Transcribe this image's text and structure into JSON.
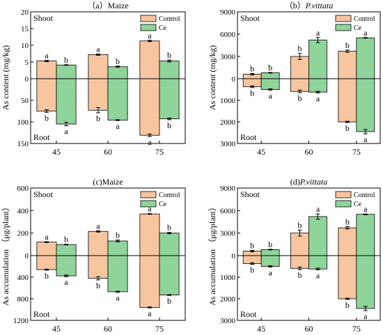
{
  "colors": {
    "control": "#f7c6a0",
    "ce": "#8fd49a",
    "axis": "#000000"
  },
  "chart_data": [
    {
      "id": "a",
      "type": "bar",
      "title_prefix": "（a）",
      "title_main": "Maize",
      "title_italic": false,
      "ylabel": "As content (mg/kg)",
      "xlabel": "",
      "categories": [
        "45",
        "60",
        "75"
      ],
      "legend": [
        "Control",
        "Ce"
      ],
      "legend_position": "top-right",
      "zone_labels": {
        "top": "Shoot",
        "bottom": "Root"
      },
      "top_ticks": [
        0,
        5,
        10,
        15,
        20
      ],
      "bottom_ticks": [
        0,
        50,
        100,
        150
      ],
      "top_max": 20,
      "bottom_max": 150,
      "series": [
        {
          "name": "Control",
          "shoot": [
            5.3,
            7.2,
            11.3
          ],
          "shoot_err": [
            0.2,
            0.2,
            0.2
          ],
          "shoot_letters": [
            "a",
            "a",
            "a"
          ],
          "root": [
            75,
            73,
            131
          ],
          "root_err": [
            3,
            6,
            3
          ],
          "root_letters": [
            "b",
            "b",
            "a"
          ]
        },
        {
          "name": "Ce",
          "shoot": [
            4.1,
            3.6,
            5.3
          ],
          "shoot_err": [
            0.1,
            0.2,
            0.3
          ],
          "shoot_letters": [
            "b",
            "b",
            "b"
          ],
          "root": [
            105,
            96,
            93
          ],
          "root_err": [
            4,
            1,
            2
          ],
          "root_letters": [
            "a",
            "a",
            "b"
          ]
        }
      ]
    },
    {
      "id": "b",
      "type": "bar",
      "title_prefix": "（b）",
      "title_main": "P.vittata",
      "title_italic": true,
      "ylabel": "As content (mg/kg)",
      "xlabel": "",
      "categories": [
        "45",
        "60",
        "75"
      ],
      "legend": [
        "Control",
        "Ce"
      ],
      "legend_position": "top-right",
      "zone_labels": {
        "top": "Shoot",
        "bottom": "Root"
      },
      "top_ticks": [
        0,
        3000,
        6000,
        9000
      ],
      "bottom_ticks": [
        0,
        1000,
        2000,
        3000
      ],
      "top_max": 9000,
      "bottom_max": 3000,
      "series": [
        {
          "name": "Control",
          "shoot": [
            600,
            3000,
            3700
          ],
          "shoot_err": [
            100,
            400,
            150
          ],
          "shoot_letters": [
            "b",
            "b",
            "b"
          ],
          "root": [
            370,
            590,
            2000
          ],
          "root_err": [
            40,
            60,
            30
          ],
          "root_letters": [
            "b",
            "b",
            "b"
          ]
        },
        {
          "name": "Ce",
          "shoot": [
            800,
            5200,
            5500
          ],
          "shoot_err": [
            50,
            350,
            50
          ],
          "shoot_letters": [
            "b",
            "a",
            "a"
          ],
          "root": [
            500,
            620,
            2450
          ],
          "root_err": [
            30,
            40,
            100
          ],
          "root_letters": [
            "a",
            "a",
            "a"
          ]
        }
      ]
    },
    {
      "id": "c",
      "type": "bar",
      "title_prefix": "(c)",
      "title_main": "Maize",
      "title_italic": false,
      "ylabel": "As accumulation （μg/plant）",
      "xlabel": "",
      "categories": [
        "45",
        "60",
        "75"
      ],
      "legend": [
        "Control",
        "Ce"
      ],
      "legend_position": "top-right",
      "zone_labels": {
        "top": "Shoot",
        "bottom": "Root"
      },
      "top_ticks": [
        0,
        200,
        400,
        600
      ],
      "bottom_ticks": [
        0,
        400,
        800,
        1200
      ],
      "top_max": 600,
      "bottom_max": 1200,
      "series": [
        {
          "name": "Control",
          "shoot": [
            120,
            215,
            370
          ],
          "shoot_err": [
            4,
            6,
            3
          ],
          "shoot_letters": [
            "a",
            "a",
            "a"
          ],
          "root": [
            260,
            420,
            960
          ],
          "root_err": [
            10,
            30,
            10
          ],
          "root_letters": [
            "b",
            "b",
            "a"
          ]
        },
        {
          "name": "Ce",
          "shoot": [
            98,
            130,
            200
          ],
          "shoot_err": [
            3,
            8,
            6
          ],
          "shoot_letters": [
            "b",
            "b",
            "b"
          ],
          "root": [
            375,
            670,
            730
          ],
          "root_err": [
            15,
            10,
            8
          ],
          "root_letters": [
            "a",
            "a",
            "b"
          ]
        }
      ]
    },
    {
      "id": "d",
      "type": "bar",
      "title_prefix": "(d)",
      "title_main": "P.vittata",
      "title_italic": true,
      "ylabel": "As accumulation （μg/plant）",
      "xlabel": "",
      "categories": [
        "45",
        "60",
        "75"
      ],
      "legend": [
        "Control",
        "Ce"
      ],
      "legend_position": "top-right",
      "zone_labels": {
        "top": "Shoot",
        "bottom": "Root"
      },
      "top_ticks": [
        0,
        3000,
        6000,
        9000
      ],
      "bottom_ticks": [
        0,
        1000,
        2000,
        3000
      ],
      "top_max": 9000,
      "bottom_max": 3000,
      "series": [
        {
          "name": "Control",
          "shoot": [
            600,
            3000,
            3700
          ],
          "shoot_err": [
            100,
            400,
            150
          ],
          "shoot_letters": [
            "b",
            "b",
            "b"
          ],
          "root": [
            370,
            590,
            2000
          ],
          "root_err": [
            40,
            60,
            30
          ],
          "root_letters": [
            "b",
            "b",
            "b"
          ]
        },
        {
          "name": "Ce",
          "shoot": [
            800,
            5200,
            5500
          ],
          "shoot_err": [
            50,
            350,
            50
          ],
          "shoot_letters": [
            "b",
            "a",
            "a"
          ],
          "root": [
            500,
            620,
            2450
          ],
          "root_err": [
            30,
            40,
            100
          ],
          "root_letters": [
            "a",
            "a",
            "a"
          ]
        }
      ]
    }
  ]
}
